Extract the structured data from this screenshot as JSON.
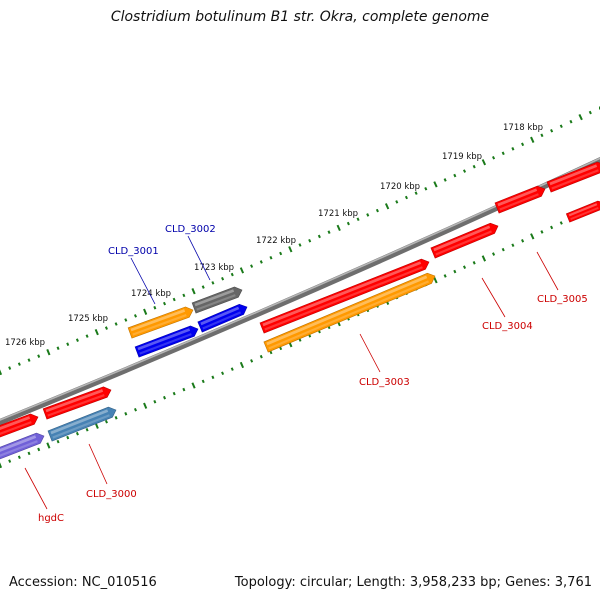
{
  "title": "Clostridium botulinum B1 str. Okra, complete genome",
  "footer": {
    "accession": "Accession: NC_010516",
    "summary": "Topology: circular; Length: 3,958,233 bp; Genes: 3,761"
  },
  "colors": {
    "backbone": "#808080",
    "tick": "#1a7a1a",
    "red": "#ff0000",
    "orange": "#ff9900",
    "blue": "#0000ee",
    "gray": "#666666",
    "steelblue": "#4682b4",
    "slateblue": "#7060d8",
    "label_red": "#cc0000",
    "label_blue": "#0000aa"
  },
  "scale_labels": [
    "1726 kbp",
    "1725 kbp",
    "1724 kbp",
    "1723 kbp",
    "1722 kbp",
    "1721 kbp",
    "1720 kbp",
    "1719 kbp",
    "1718 kbp"
  ],
  "features": [
    {
      "label": "CLD_3005",
      "color": "label_red"
    },
    {
      "label": "CLD_3004",
      "color": "label_red"
    },
    {
      "label": "CLD_3003",
      "color": "label_red"
    },
    {
      "label": "CLD_3002",
      "color": "label_blue"
    },
    {
      "label": "CLD_3001",
      "color": "label_blue"
    },
    {
      "label": "CLD_3000",
      "color": "label_red"
    },
    {
      "label": "hgdC",
      "color": "label_red"
    }
  ]
}
